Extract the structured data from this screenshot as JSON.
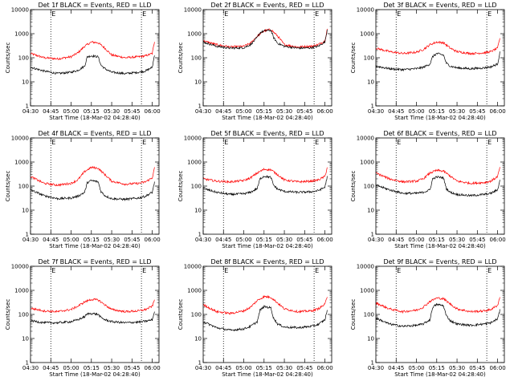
{
  "chart_data": [
    {
      "type": "line",
      "title": "Det 1f BLACK = Events, RED = LLD",
      "xlabel": "Start Time (18-Mar-02 04:28:40)",
      "ylabel": "Counts/sec",
      "xlim": [
        "04:30",
        "06:05"
      ],
      "ylim": [
        1,
        10000
      ],
      "yscale": "log",
      "x_ticks": [
        "04:30",
        "04:45",
        "05:00",
        "05:15",
        "05:30",
        "05:45",
        "06:00"
      ],
      "y_ticks": [
        "1",
        "10",
        "100",
        "1000",
        "10000"
      ],
      "markers": [
        {
          "label": "E",
          "time": "04:45"
        },
        {
          "label": "E",
          "time": "05:52"
        }
      ],
      "series": [
        {
          "color": "#ff0000",
          "x": [
            "04:30",
            "04:40",
            "04:50",
            "05:00",
            "05:05",
            "05:10",
            "05:15",
            "05:20",
            "05:25",
            "05:30",
            "05:40",
            "05:50",
            "05:55",
            "06:00",
            "06:02"
          ],
          "values": [
            150,
            100,
            90,
            110,
            160,
            300,
            450,
            420,
            250,
            130,
            100,
            110,
            120,
            150,
            600
          ]
        },
        {
          "color": "#000000",
          "x": [
            "04:30",
            "04:40",
            "04:50",
            "05:00",
            "05:05",
            "05:10",
            "05:12",
            "05:15",
            "05:20",
            "05:22",
            "05:25",
            "05:30",
            "05:40",
            "05:50",
            "05:55",
            "06:00",
            "06:02"
          ],
          "values": [
            40,
            28,
            22,
            25,
            30,
            45,
            110,
            120,
            110,
            50,
            35,
            25,
            22,
            25,
            28,
            40,
            170
          ]
        }
      ]
    },
    {
      "type": "line",
      "title": "Det 2f BLACK = Events, RED = LLD",
      "xlabel": "Start Time (18-Mar-02 04:28:40)",
      "ylabel": "Counts/sec",
      "xlim": [
        "04:30",
        "06:05"
      ],
      "ylim": [
        1,
        10000
      ],
      "yscale": "log",
      "x_ticks": [
        "04:30",
        "04:45",
        "05:00",
        "05:15",
        "05:30",
        "05:45",
        "06:00"
      ],
      "y_ticks": [
        "1",
        "10",
        "100",
        "1000",
        "10000"
      ],
      "markers": [
        {
          "label": "E",
          "time": "04:45"
        },
        {
          "label": "E",
          "time": "05:52"
        }
      ],
      "series": [
        {
          "color": "#ff0000",
          "x": [
            "04:30",
            "04:40",
            "04:50",
            "05:00",
            "05:05",
            "05:10",
            "05:15",
            "05:20",
            "05:25",
            "05:30",
            "05:40",
            "05:50",
            "05:55",
            "06:00",
            "06:02"
          ],
          "values": [
            500,
            350,
            280,
            300,
            400,
            800,
            1300,
            1500,
            800,
            350,
            280,
            300,
            350,
            500,
            2000
          ]
        },
        {
          "color": "#000000",
          "x": [
            "04:30",
            "04:40",
            "04:50",
            "05:00",
            "05:05",
            "05:10",
            "05:12",
            "05:15",
            "05:20",
            "05:22",
            "05:25",
            "05:30",
            "05:40",
            "05:50",
            "05:55",
            "06:00",
            "06:02"
          ],
          "values": [
            450,
            300,
            250,
            260,
            350,
            700,
            1100,
            1300,
            1400,
            700,
            400,
            300,
            250,
            260,
            300,
            450,
            1800
          ]
        }
      ]
    },
    {
      "type": "line",
      "title": "Det 3f BLACK = Events, RED = LLD",
      "xlabel": "Start Time (18-Mar-02 04:28:40)",
      "ylabel": "Counts/sec",
      "xlim": [
        "04:30",
        "06:05"
      ],
      "ylim": [
        1,
        10000
      ],
      "yscale": "log",
      "x_ticks": [
        "04:30",
        "04:45",
        "05:00",
        "05:15",
        "05:30",
        "05:45",
        "06:00"
      ],
      "y_ticks": [
        "1",
        "10",
        "100",
        "1000",
        "10000"
      ],
      "markers": [
        {
          "label": "E",
          "time": "04:45"
        },
        {
          "label": "E",
          "time": "05:52"
        }
      ],
      "series": [
        {
          "color": "#ff0000",
          "x": [
            "04:30",
            "04:40",
            "04:50",
            "05:00",
            "05:05",
            "05:10",
            "05:15",
            "05:20",
            "05:25",
            "05:30",
            "05:40",
            "05:50",
            "05:55",
            "06:00",
            "06:02"
          ],
          "values": [
            250,
            180,
            150,
            170,
            220,
            350,
            450,
            420,
            250,
            180,
            150,
            160,
            180,
            250,
            800
          ]
        },
        {
          "color": "#000000",
          "x": [
            "04:30",
            "04:40",
            "04:50",
            "05:00",
            "05:05",
            "05:10",
            "05:12",
            "05:15",
            "05:20",
            "05:22",
            "05:25",
            "05:30",
            "05:40",
            "05:50",
            "05:55",
            "06:00",
            "06:02"
          ],
          "values": [
            45,
            35,
            32,
            35,
            40,
            55,
            110,
            150,
            130,
            60,
            45,
            38,
            35,
            38,
            42,
            55,
            200
          ]
        }
      ]
    },
    {
      "type": "line",
      "title": "Det 4f BLACK = Events, RED = LLD",
      "xlabel": "Start Time (18-Mar-02 04:28:40)",
      "ylabel": "Counts/sec",
      "xlim": [
        "04:30",
        "06:05"
      ],
      "ylim": [
        1,
        10000
      ],
      "yscale": "log",
      "x_ticks": [
        "04:30",
        "04:45",
        "05:00",
        "05:15",
        "05:30",
        "05:45",
        "06:00"
      ],
      "y_ticks": [
        "1",
        "10",
        "100",
        "1000",
        "10000"
      ],
      "markers": [
        {
          "label": "E",
          "time": "04:45"
        },
        {
          "label": "E",
          "time": "05:52"
        }
      ],
      "series": [
        {
          "color": "#ff0000",
          "x": [
            "04:30",
            "04:40",
            "04:50",
            "05:00",
            "05:05",
            "05:10",
            "05:15",
            "05:20",
            "05:25",
            "05:30",
            "05:40",
            "05:50",
            "05:55",
            "06:00",
            "06:02"
          ],
          "values": [
            250,
            130,
            110,
            130,
            180,
            400,
            600,
            550,
            300,
            160,
            120,
            130,
            150,
            220,
            700
          ]
        },
        {
          "color": "#000000",
          "x": [
            "04:30",
            "04:40",
            "04:50",
            "05:00",
            "05:05",
            "05:10",
            "05:12",
            "05:15",
            "05:20",
            "05:22",
            "05:25",
            "05:30",
            "05:40",
            "05:50",
            "05:55",
            "06:00",
            "06:02"
          ],
          "values": [
            70,
            40,
            30,
            32,
            38,
            55,
            140,
            170,
            150,
            60,
            40,
            30,
            28,
            32,
            38,
            55,
            180
          ]
        }
      ]
    },
    {
      "type": "line",
      "title": "Det 5f BLACK = Events, RED = LLD",
      "xlabel": "Start Time (18-Mar-02 04:28:40)",
      "ylabel": "Counts/sec",
      "xlim": [
        "04:30",
        "06:05"
      ],
      "ylim": [
        1,
        10000
      ],
      "yscale": "log",
      "x_ticks": [
        "04:30",
        "04:45",
        "05:00",
        "05:15",
        "05:30",
        "05:45",
        "06:00"
      ],
      "y_ticks": [
        "1",
        "10",
        "100",
        "1000",
        "10000"
      ],
      "markers": [
        {
          "label": "E",
          "time": "04:45"
        },
        {
          "label": "E",
          "time": "05:52"
        }
      ],
      "series": [
        {
          "color": "#ff0000",
          "x": [
            "04:30",
            "04:40",
            "04:50",
            "05:00",
            "05:05",
            "05:10",
            "05:15",
            "05:20",
            "05:25",
            "05:30",
            "05:40",
            "05:50",
            "05:55",
            "06:00",
            "06:02"
          ],
          "values": [
            200,
            160,
            150,
            170,
            220,
            350,
            500,
            480,
            300,
            180,
            150,
            160,
            180,
            250,
            700
          ]
        },
        {
          "color": "#000000",
          "x": [
            "04:30",
            "04:40",
            "04:50",
            "05:00",
            "05:05",
            "05:10",
            "05:12",
            "05:15",
            "05:20",
            "05:22",
            "05:25",
            "05:30",
            "05:40",
            "05:50",
            "05:55",
            "06:00",
            "06:02"
          ],
          "values": [
            80,
            55,
            45,
            48,
            55,
            80,
            200,
            260,
            230,
            110,
            75,
            60,
            55,
            58,
            65,
            90,
            300
          ]
        }
      ]
    },
    {
      "type": "line",
      "title": "Det 6f BLACK = Events, RED = LLD",
      "xlabel": "Start Time (18-Mar-02 04:28:40)",
      "ylabel": "Counts/sec",
      "xlim": [
        "04:30",
        "06:05"
      ],
      "ylim": [
        1,
        10000
      ],
      "yscale": "log",
      "x_ticks": [
        "04:30",
        "04:45",
        "05:00",
        "05:15",
        "05:30",
        "05:45",
        "06:00"
      ],
      "y_ticks": [
        "1",
        "10",
        "100",
        "1000",
        "10000"
      ],
      "markers": [
        {
          "label": "E",
          "time": "04:45"
        },
        {
          "label": "E",
          "time": "05:52"
        }
      ],
      "series": [
        {
          "color": "#ff0000",
          "x": [
            "04:30",
            "04:40",
            "04:50",
            "05:00",
            "05:05",
            "05:10",
            "05:15",
            "05:20",
            "05:25",
            "05:30",
            "05:40",
            "05:50",
            "05:55",
            "06:00",
            "06:02"
          ],
          "values": [
            350,
            200,
            150,
            160,
            200,
            350,
            450,
            420,
            260,
            160,
            130,
            140,
            160,
            250,
            700
          ]
        },
        {
          "color": "#000000",
          "x": [
            "04:30",
            "04:40",
            "04:50",
            "05:00",
            "05:05",
            "05:10",
            "05:12",
            "05:15",
            "05:20",
            "05:22",
            "05:25",
            "05:30",
            "05:40",
            "05:50",
            "05:55",
            "06:00",
            "06:02"
          ],
          "values": [
            110,
            70,
            50,
            50,
            55,
            70,
            200,
            240,
            220,
            80,
            55,
            45,
            40,
            45,
            50,
            70,
            200
          ]
        }
      ]
    },
    {
      "type": "line",
      "title": "Det 7f BLACK = Events, RED = LLD",
      "xlabel": "Start Time (18-Mar-02 04:28:40)",
      "ylabel": "Counts/sec",
      "xlim": [
        "04:30",
        "06:05"
      ],
      "ylim": [
        1,
        10000
      ],
      "yscale": "log",
      "x_ticks": [
        "04:30",
        "04:45",
        "05:00",
        "05:15",
        "05:30",
        "05:45",
        "06:00"
      ],
      "y_ticks": [
        "1",
        "10",
        "100",
        "1000",
        "10000"
      ],
      "markers": [
        {
          "label": "E",
          "time": "04:45"
        },
        {
          "label": "E",
          "time": "05:52"
        }
      ],
      "series": [
        {
          "color": "#ff0000",
          "x": [
            "04:30",
            "04:40",
            "04:50",
            "05:00",
            "05:05",
            "05:10",
            "05:15",
            "05:20",
            "05:25",
            "05:30",
            "05:40",
            "05:50",
            "05:55",
            "06:00",
            "06:02"
          ],
          "values": [
            180,
            140,
            130,
            160,
            220,
            330,
            420,
            400,
            250,
            160,
            130,
            140,
            160,
            220,
            450
          ]
        },
        {
          "color": "#000000",
          "x": [
            "04:30",
            "04:40",
            "04:50",
            "05:00",
            "05:05",
            "05:10",
            "05:12",
            "05:15",
            "05:20",
            "05:22",
            "05:25",
            "05:30",
            "05:40",
            "05:50",
            "05:55",
            "06:00",
            "06:02"
          ],
          "values": [
            55,
            45,
            45,
            50,
            60,
            80,
            105,
            110,
            100,
            75,
            60,
            50,
            45,
            48,
            52,
            60,
            150
          ]
        }
      ]
    },
    {
      "type": "line",
      "title": "Det 8f BLACK = Events, RED = LLD",
      "xlabel": "Start Time (18-Mar-02 04:28:40)",
      "ylabel": "Counts/sec",
      "xlim": [
        "04:30",
        "06:05"
      ],
      "ylim": [
        1,
        10000
      ],
      "yscale": "log",
      "x_ticks": [
        "04:30",
        "04:45",
        "05:00",
        "05:15",
        "05:30",
        "05:45",
        "06:00"
      ],
      "y_ticks": [
        "1",
        "10",
        "100",
        "1000",
        "10000"
      ],
      "markers": [
        {
          "label": "E",
          "time": "04:45"
        },
        {
          "label": "E",
          "time": "05:52"
        }
      ],
      "series": [
        {
          "color": "#ff0000",
          "x": [
            "04:30",
            "04:40",
            "04:50",
            "05:00",
            "05:05",
            "05:10",
            "05:15",
            "05:20",
            "05:25",
            "05:30",
            "05:40",
            "05:50",
            "05:55",
            "06:00",
            "06:02"
          ],
          "values": [
            250,
            130,
            110,
            140,
            200,
            380,
            550,
            520,
            300,
            170,
            130,
            140,
            170,
            260,
            650
          ]
        },
        {
          "color": "#000000",
          "x": [
            "04:30",
            "04:40",
            "04:50",
            "05:00",
            "05:05",
            "05:10",
            "05:12",
            "05:15",
            "05:20",
            "05:22",
            "05:25",
            "05:30",
            "05:40",
            "05:50",
            "05:55",
            "06:00",
            "06:02"
          ],
          "values": [
            50,
            28,
            22,
            25,
            32,
            50,
            150,
            210,
            190,
            70,
            40,
            30,
            28,
            32,
            38,
            60,
            180
          ]
        }
      ]
    },
    {
      "type": "line",
      "title": "Det 9f BLACK = Events, RED = LLD",
      "xlabel": "Start Time (18-Mar-02 04:28:40)",
      "ylabel": "Counts/sec",
      "xlim": [
        "04:30",
        "06:05"
      ],
      "ylim": [
        1,
        10000
      ],
      "yscale": "log",
      "x_ticks": [
        "04:30",
        "04:45",
        "05:00",
        "05:15",
        "05:30",
        "05:45",
        "06:00"
      ],
      "y_ticks": [
        "1",
        "10",
        "100",
        "1000",
        "10000"
      ],
      "markers": [
        {
          "label": "E",
          "time": "04:45"
        },
        {
          "label": "E",
          "time": "05:52"
        }
      ],
      "series": [
        {
          "color": "#ff0000",
          "x": [
            "04:30",
            "04:40",
            "04:50",
            "05:00",
            "05:05",
            "05:10",
            "05:15",
            "05:20",
            "05:25",
            "05:30",
            "05:40",
            "05:50",
            "05:55",
            "06:00",
            "06:02"
          ],
          "values": [
            300,
            170,
            130,
            150,
            200,
            350,
            480,
            450,
            270,
            170,
            130,
            140,
            160,
            240,
            600
          ]
        },
        {
          "color": "#000000",
          "x": [
            "04:30",
            "04:40",
            "04:50",
            "05:00",
            "05:05",
            "05:10",
            "05:12",
            "05:15",
            "05:20",
            "05:22",
            "05:25",
            "05:30",
            "05:40",
            "05:50",
            "05:55",
            "06:00",
            "06:02"
          ],
          "values": [
            70,
            40,
            32,
            35,
            40,
            60,
            200,
            260,
            230,
            90,
            55,
            40,
            35,
            40,
            45,
            65,
            170
          ]
        }
      ]
    }
  ]
}
